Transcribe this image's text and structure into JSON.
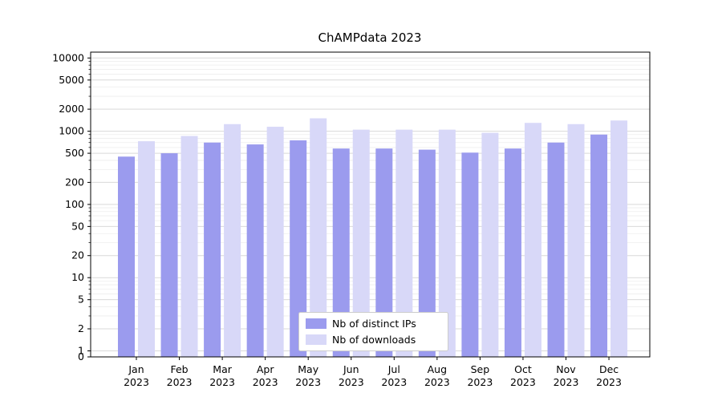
{
  "title": "ChAMPdata 2023",
  "chart_data": {
    "type": "bar",
    "title": "ChAMPdata 2023",
    "xlabel": "",
    "ylabel": "",
    "yscale": "symlog",
    "grid": true,
    "legend_position": "lower center",
    "yticks": [
      0,
      1,
      2,
      5,
      10,
      20,
      50,
      100,
      200,
      500,
      1000,
      2000,
      5000,
      10000
    ],
    "ylim": [
      0,
      10000
    ],
    "categories": [
      {
        "month": "Jan",
        "year": "2023"
      },
      {
        "month": "Feb",
        "year": "2023"
      },
      {
        "month": "Mar",
        "year": "2023"
      },
      {
        "month": "Apr",
        "year": "2023"
      },
      {
        "month": "May",
        "year": "2023"
      },
      {
        "month": "Jun",
        "year": "2023"
      },
      {
        "month": "Jul",
        "year": "2023"
      },
      {
        "month": "Aug",
        "year": "2023"
      },
      {
        "month": "Sep",
        "year": "2023"
      },
      {
        "month": "Oct",
        "year": "2023"
      },
      {
        "month": "Nov",
        "year": "2023"
      },
      {
        "month": "Dec",
        "year": "2023"
      }
    ],
    "series": [
      {
        "name": "Nb of distinct IPs",
        "color": "#9b9bee",
        "values": [
          450,
          500,
          700,
          660,
          750,
          580,
          580,
          560,
          510,
          580,
          700,
          900
        ]
      },
      {
        "name": "Nb of downloads",
        "color": "#d8d8f8",
        "values": [
          730,
          860,
          1250,
          1150,
          1500,
          1050,
          1050,
          1050,
          950,
          1300,
          1250,
          1400
        ]
      }
    ]
  }
}
